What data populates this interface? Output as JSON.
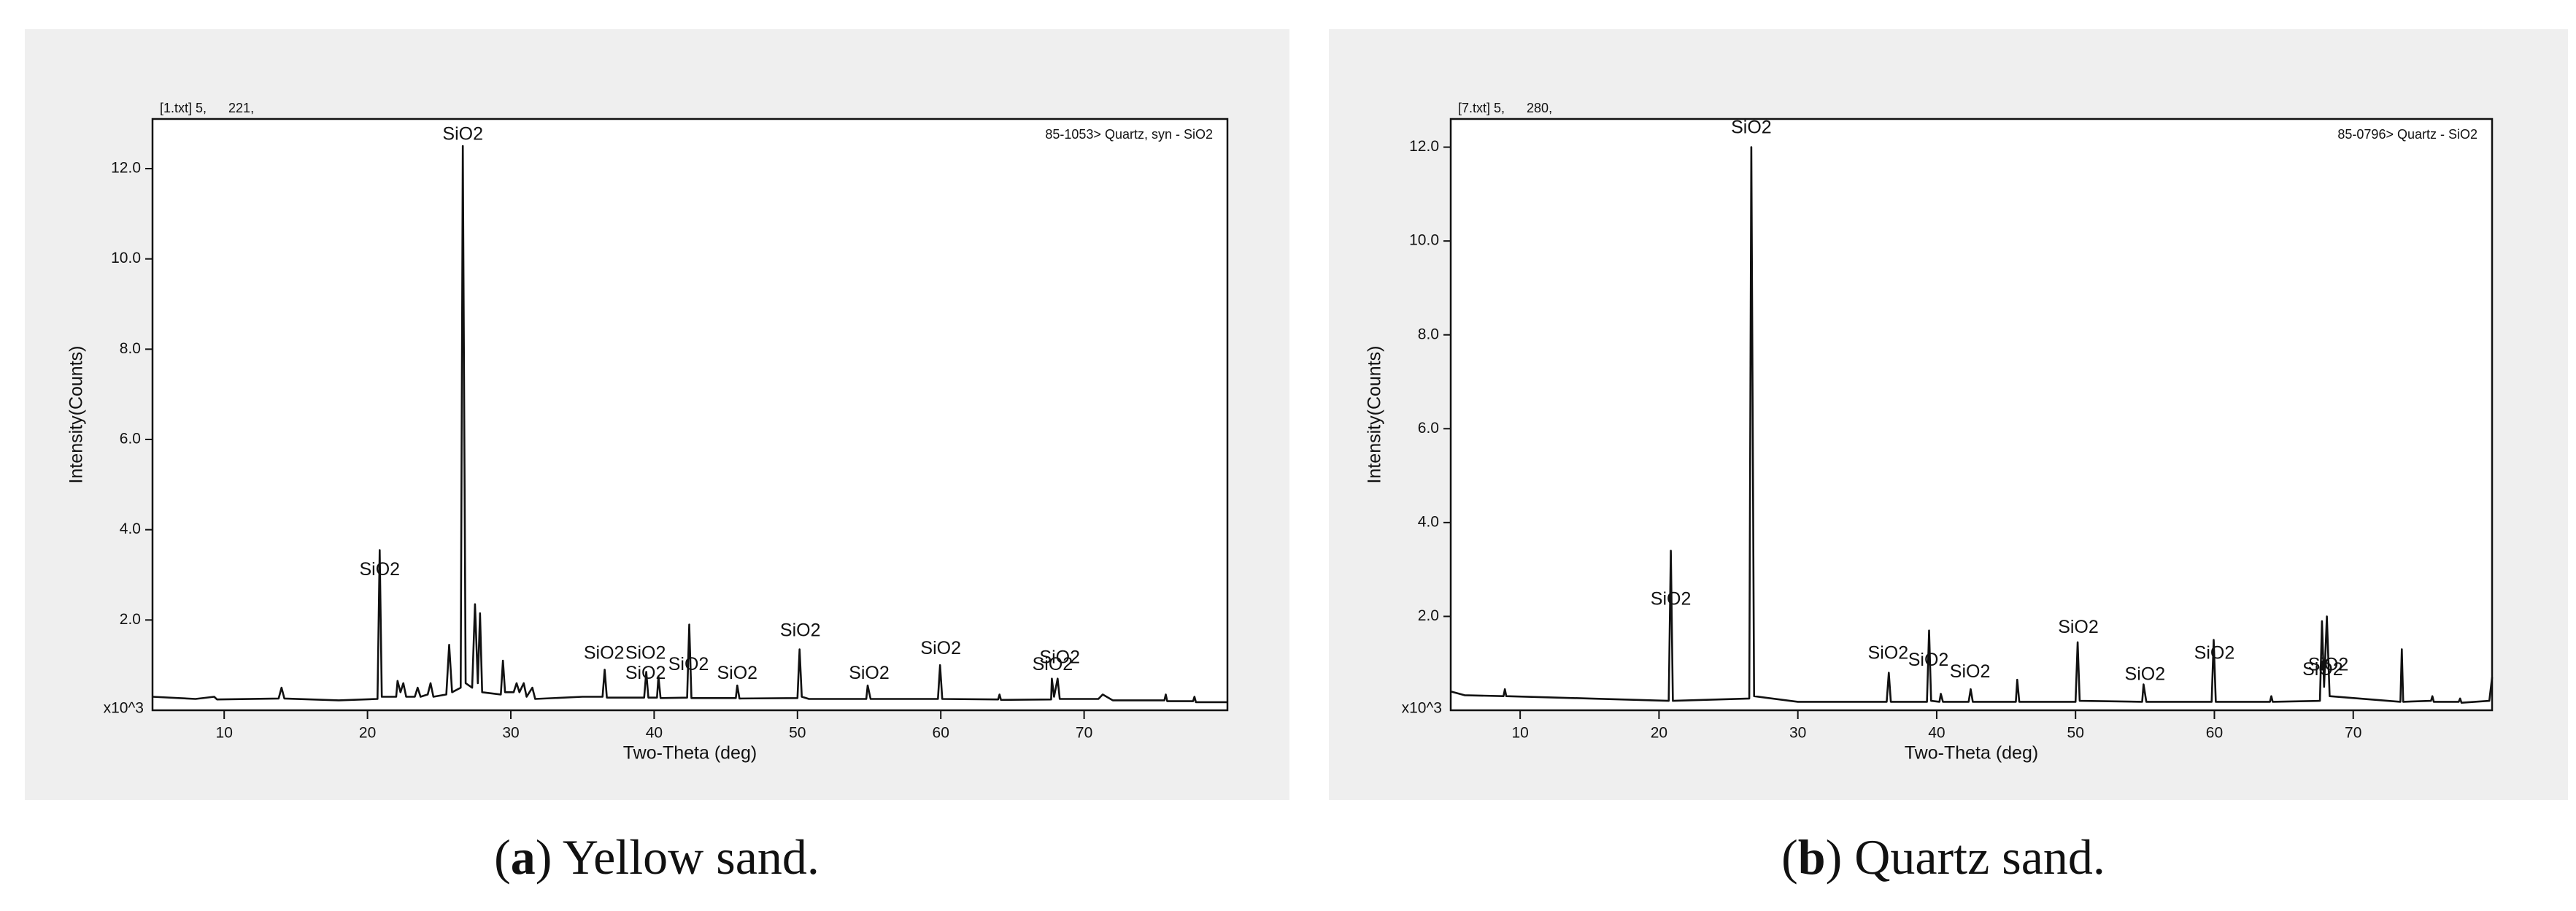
{
  "chart_data": [
    {
      "type": "line",
      "file_label": "[1.txt] 5,      221,",
      "reference_label": "85-1053> Quartz, syn - SiO2",
      "xlabel": "Two-Theta (deg)",
      "ylabel": "Intensity(Counts)",
      "y_unit_label": "x10^3",
      "color": "#111111",
      "xlim": [
        5,
        80
      ],
      "ylim": [
        0,
        13.1
      ],
      "xticks": [
        10,
        20,
        30,
        40,
        50,
        60,
        70
      ],
      "yticks": [
        {
          "value": 2,
          "label": "2.0"
        },
        {
          "value": 4,
          "label": "4.0"
        },
        {
          "value": 6,
          "label": "6.0"
        },
        {
          "value": 8,
          "label": "8.0"
        },
        {
          "value": 10,
          "label": "10.0"
        },
        {
          "value": 12,
          "label": "12.0"
        }
      ],
      "x": [
        5,
        8,
        9.3,
        9.5,
        13.8,
        14.0,
        14.2,
        18,
        20.7,
        20.85,
        21.0,
        22.0,
        22.1,
        22.3,
        22.5,
        22.7,
        23.3,
        23.5,
        23.7,
        24.2,
        24.4,
        24.6,
        25.5,
        25.7,
        25.9,
        26.5,
        26.65,
        26.85,
        27.3,
        27.5,
        27.7,
        27.85,
        28.0,
        29.3,
        29.45,
        29.6,
        30.2,
        30.4,
        30.6,
        30.9,
        31.1,
        31.5,
        31.7,
        35.0,
        36.4,
        36.55,
        36.7,
        39.3,
        39.45,
        39.6,
        40.2,
        40.3,
        40.45,
        42.3,
        42.45,
        42.6,
        45.7,
        45.8,
        45.95,
        50.0,
        50.15,
        50.3,
        50.8,
        54.8,
        54.9,
        55.1,
        59.8,
        59.95,
        60.1,
        64.0,
        64.1,
        64.2,
        67.7,
        67.75,
        67.9,
        68.15,
        68.3,
        71,
        71.3,
        72,
        75.6,
        75.7,
        75.8,
        77.6,
        77.7,
        77.8,
        80
      ],
      "values": [
        0.3,
        0.25,
        0.3,
        0.24,
        0.26,
        0.5,
        0.26,
        0.22,
        0.25,
        3.55,
        0.3,
        0.3,
        0.65,
        0.4,
        0.6,
        0.3,
        0.3,
        0.5,
        0.3,
        0.35,
        0.6,
        0.3,
        0.35,
        1.45,
        0.4,
        0.5,
        12.5,
        0.6,
        0.5,
        2.35,
        0.6,
        2.15,
        0.4,
        0.35,
        1.1,
        0.4,
        0.4,
        0.6,
        0.4,
        0.6,
        0.3,
        0.5,
        0.25,
        0.3,
        0.3,
        0.9,
        0.28,
        0.28,
        0.85,
        0.28,
        0.28,
        0.75,
        0.27,
        0.28,
        1.9,
        0.27,
        0.27,
        0.55,
        0.26,
        0.27,
        1.35,
        0.3,
        0.25,
        0.25,
        0.55,
        0.25,
        0.25,
        1.0,
        0.25,
        0.24,
        0.35,
        0.23,
        0.24,
        0.7,
        0.3,
        0.7,
        0.25,
        0.25,
        0.35,
        0.22,
        0.22,
        0.35,
        0.2,
        0.2,
        0.3,
        0.18,
        0.18
      ],
      "annotations": [
        {
          "text": "SiO2",
          "x": 26.65,
          "y": 12.75
        },
        {
          "text": "SiO2",
          "x": 20.85,
          "y": 3.1
        },
        {
          "text": "SiO2",
          "x": 36.5,
          "y": 1.25
        },
        {
          "text": "SiO2",
          "x": 39.4,
          "y": 1.25
        },
        {
          "text": "SiO2",
          "x": 39.4,
          "y": 0.8
        },
        {
          "text": "SiO2",
          "x": 42.4,
          "y": 1.0
        },
        {
          "text": "SiO2",
          "x": 45.8,
          "y": 0.8
        },
        {
          "text": "SiO2",
          "x": 50.2,
          "y": 1.75
        },
        {
          "text": "SiO2",
          "x": 55,
          "y": 0.8
        },
        {
          "text": "SiO2",
          "x": 60,
          "y": 1.35
        },
        {
          "text": "SiO2",
          "x": 67.8,
          "y": 1.0
        },
        {
          "text": "SiO2",
          "x": 68.3,
          "y": 1.15
        }
      ],
      "caption": [
        "(",
        "a",
        ") Yellow sand."
      ]
    },
    {
      "type": "line",
      "file_label": "[7.txt] 5,      280,",
      "reference_label": "85-0796> Quartz - SiO2",
      "xlabel": "Two-Theta (deg)",
      "ylabel": "Intensity(Counts)",
      "y_unit_label": "x10^3",
      "color": "#111111",
      "xlim": [
        5,
        80
      ],
      "ylim": [
        0,
        12.6
      ],
      "xticks": [
        10,
        20,
        30,
        40,
        50,
        60,
        70
      ],
      "yticks": [
        {
          "value": 2,
          "label": "2.0"
        },
        {
          "value": 4,
          "label": "4.0"
        },
        {
          "value": 6,
          "label": "6.0"
        },
        {
          "value": 8,
          "label": "8.0"
        },
        {
          "value": 10,
          "label": "10.0"
        },
        {
          "value": 12,
          "label": "12.0"
        }
      ],
      "x": [
        5,
        6,
        8.8,
        8.9,
        9.0,
        15,
        20.7,
        20.85,
        21.0,
        26.5,
        26.65,
        26.85,
        30,
        36.4,
        36.55,
        36.7,
        39.3,
        39.45,
        39.6,
        40.2,
        40.3,
        40.45,
        42.3,
        42.45,
        42.6,
        45.7,
        45.8,
        45.95,
        50.0,
        50.15,
        50.3,
        54.8,
        54.9,
        55.1,
        59.8,
        59.95,
        60.1,
        64.0,
        64.1,
        64.2,
        67.6,
        67.75,
        67.9,
        68.1,
        68.3,
        73.4,
        73.5,
        73.6,
        75.6,
        75.7,
        75.8,
        77.6,
        77.7,
        77.8,
        79.8,
        80
      ],
      "values": [
        0.4,
        0.32,
        0.3,
        0.45,
        0.3,
        0.25,
        0.2,
        3.4,
        0.2,
        0.25,
        12.0,
        0.3,
        0.18,
        0.18,
        0.8,
        0.18,
        0.18,
        1.7,
        0.2,
        0.18,
        0.35,
        0.18,
        0.18,
        0.45,
        0.18,
        0.18,
        0.65,
        0.18,
        0.18,
        1.45,
        0.2,
        0.18,
        0.55,
        0.18,
        0.18,
        1.5,
        0.18,
        0.18,
        0.3,
        0.18,
        0.2,
        1.9,
        0.5,
        2.0,
        0.3,
        0.18,
        1.3,
        0.18,
        0.2,
        0.3,
        0.18,
        0.18,
        0.25,
        0.16,
        0.2,
        0.7
      ],
      "annotations": [
        {
          "text": "SiO2",
          "x": 26.65,
          "y": 12.4
        },
        {
          "text": "SiO2",
          "x": 20.85,
          "y": 2.35
        },
        {
          "text": "SiO2",
          "x": 36.5,
          "y": 1.2
        },
        {
          "text": "SiO2",
          "x": 39.4,
          "y": 1.05
        },
        {
          "text": "SiO2",
          "x": 42.4,
          "y": 0.8
        },
        {
          "text": "SiO2",
          "x": 50.2,
          "y": 1.75
        },
        {
          "text": "SiO2",
          "x": 55,
          "y": 0.75
        },
        {
          "text": "SiO2",
          "x": 60,
          "y": 1.2
        },
        {
          "text": "SiO2",
          "x": 67.8,
          "y": 0.85
        },
        {
          "text": "SiO2",
          "x": 68.2,
          "y": 0.95
        }
      ],
      "caption": [
        "(",
        "b",
        ") Quartz sand."
      ]
    }
  ]
}
